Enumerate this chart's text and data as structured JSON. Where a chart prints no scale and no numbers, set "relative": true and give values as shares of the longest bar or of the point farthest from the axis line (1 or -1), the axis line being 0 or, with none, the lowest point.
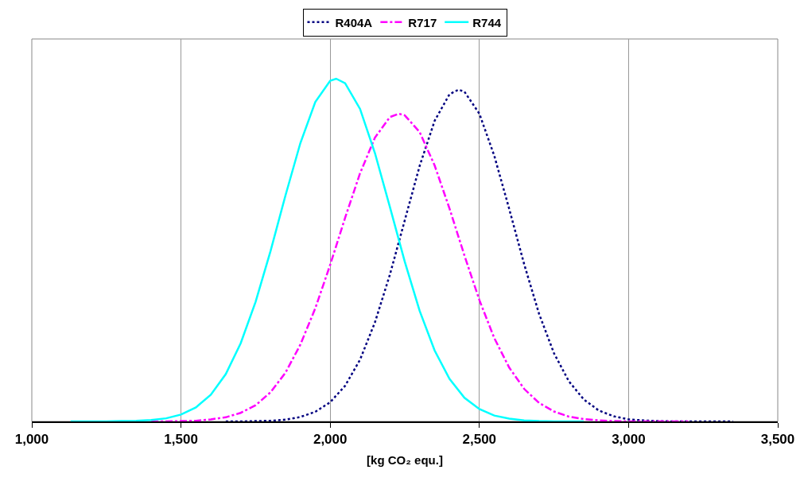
{
  "chart_data": {
    "type": "line",
    "relative": true,
    "xlabel": "[kg CO₂ equ.]",
    "xlim": [
      1000,
      3500
    ],
    "xticks": [
      {
        "value": 1000,
        "label": "1,000"
      },
      {
        "value": 1500,
        "label": "1,500"
      },
      {
        "value": 2000,
        "label": "2,000"
      },
      {
        "value": 2500,
        "label": "2,500"
      },
      {
        "value": 3000,
        "label": "3,000"
      },
      {
        "value": 3500,
        "label": "3,500"
      }
    ],
    "grid": "x",
    "legend": "top",
    "marker": "none",
    "series": [
      {
        "name": "R404A",
        "color": "#000080",
        "line_style": "dotted",
        "x": [
          1650,
          1700,
          1750,
          1800,
          1850,
          1900,
          1950,
          2000,
          2050,
          2100,
          2150,
          2200,
          2250,
          2300,
          2350,
          2400,
          2430,
          2450,
          2500,
          2550,
          2600,
          2650,
          2700,
          2750,
          2800,
          2850,
          2900,
          2950,
          3000,
          3050,
          3100,
          3150,
          3200,
          3250,
          3300,
          3350
        ],
        "values": [
          0,
          0,
          0.001,
          0.002,
          0.005,
          0.013,
          0.028,
          0.056,
          0.104,
          0.18,
          0.289,
          0.428,
          0.587,
          0.746,
          0.877,
          0.955,
          0.968,
          0.962,
          0.898,
          0.775,
          0.62,
          0.459,
          0.314,
          0.199,
          0.117,
          0.064,
          0.032,
          0.015,
          0.006,
          0.003,
          0.001,
          0,
          0,
          0,
          0,
          0
        ]
      },
      {
        "name": "R717",
        "color": "#ff00ff",
        "line_style": "dashdot",
        "x": [
          1400,
          1450,
          1500,
          1550,
          1600,
          1650,
          1700,
          1750,
          1800,
          1850,
          1900,
          1950,
          2000,
          2050,
          2100,
          2150,
          2200,
          2230,
          2250,
          2300,
          2350,
          2400,
          2450,
          2500,
          2550,
          2600,
          2650,
          2700,
          2750,
          2800,
          2850,
          2900,
          2950,
          3000,
          3050,
          3100,
          3150,
          3200
        ],
        "values": [
          0,
          0,
          0.001,
          0.002,
          0.006,
          0.012,
          0.025,
          0.047,
          0.085,
          0.142,
          0.224,
          0.33,
          0.457,
          0.594,
          0.724,
          0.828,
          0.888,
          0.898,
          0.893,
          0.844,
          0.747,
          0.621,
          0.484,
          0.354,
          0.243,
          0.157,
          0.095,
          0.054,
          0.029,
          0.014,
          0.007,
          0.003,
          0.001,
          0,
          0,
          0,
          0,
          0
        ]
      },
      {
        "name": "R744",
        "color": "#00ffff",
        "line_style": "solid",
        "x": [
          1130,
          1200,
          1250,
          1300,
          1350,
          1400,
          1450,
          1500,
          1550,
          1600,
          1650,
          1700,
          1750,
          1800,
          1850,
          1900,
          1950,
          2000,
          2020,
          2050,
          2100,
          2150,
          2200,
          2250,
          2300,
          2350,
          2400,
          2450,
          2500,
          2550,
          2600,
          2650,
          2700,
          2750,
          2800,
          2850
        ],
        "values": [
          0,
          0,
          0,
          0.001,
          0.002,
          0.004,
          0.009,
          0.02,
          0.041,
          0.078,
          0.138,
          0.228,
          0.349,
          0.497,
          0.659,
          0.812,
          0.932,
          0.994,
          1,
          0.987,
          0.912,
          0.783,
          0.626,
          0.466,
          0.322,
          0.207,
          0.124,
          0.069,
          0.036,
          0.017,
          0.008,
          0.003,
          0.001,
          0,
          0,
          0
        ]
      }
    ]
  }
}
